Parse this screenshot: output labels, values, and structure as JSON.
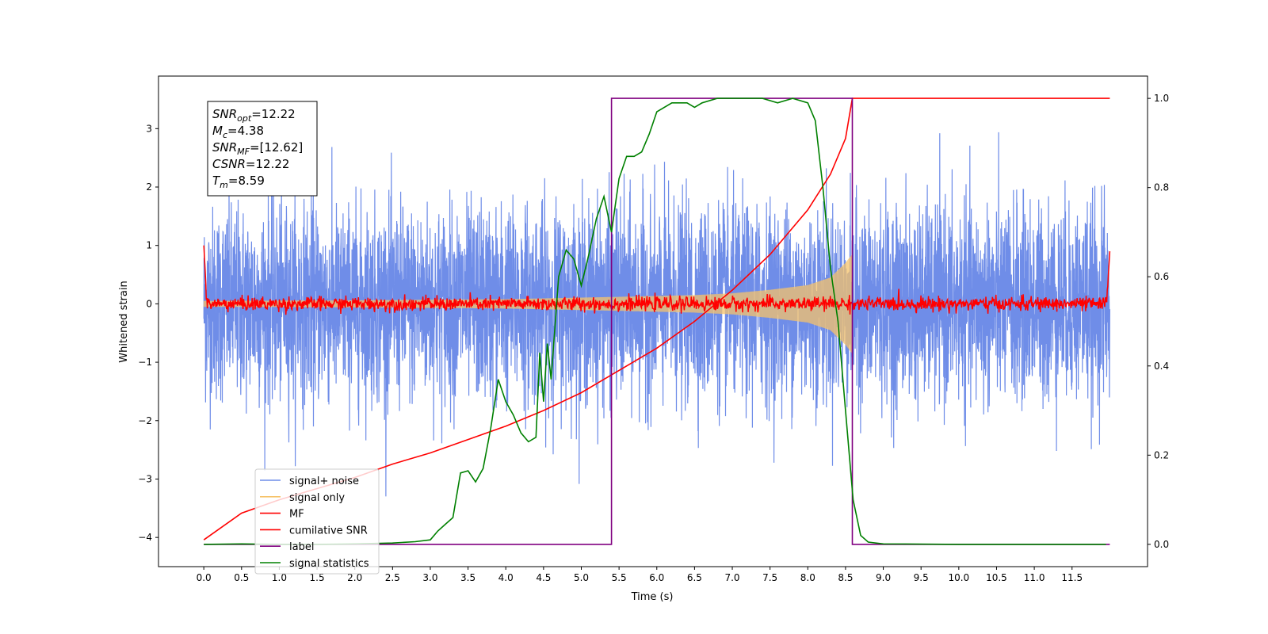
{
  "chart_data": {
    "type": "line",
    "xlabel": "Time (s)",
    "ylabel": "Whitened strain",
    "xlim": [
      -0.6,
      12.5
    ],
    "ylim": [
      -4.5,
      3.9
    ],
    "y2lim": [
      -0.05,
      1.05
    ],
    "x_ticks": [
      0.0,
      0.5,
      1.0,
      1.5,
      2.0,
      2.5,
      3.0,
      3.5,
      4.0,
      4.5,
      5.0,
      5.5,
      6.0,
      6.5,
      7.0,
      7.5,
      8.0,
      8.5,
      9.0,
      9.5,
      10.0,
      10.5,
      11.0,
      11.5
    ],
    "x_tick_labels": [
      "0.0",
      "0.5",
      "1.0",
      "1.5",
      "2.0",
      "2.5",
      "3.0",
      "3.5",
      "4.0",
      "4.5",
      "5.0",
      "5.5",
      "6.0",
      "6.5",
      "7.0",
      "7.5",
      "8.0",
      "8.5",
      "9.0",
      "9.5",
      "10.0",
      "10.5",
      "11.0",
      "11.5"
    ],
    "y_ticks": [
      -4,
      -3,
      -2,
      -1,
      0,
      1,
      2,
      3
    ],
    "y_tick_labels": [
      "−4",
      "−3",
      "−2",
      "−1",
      "0",
      "1",
      "2",
      "3"
    ],
    "y2_ticks": [
      0.0,
      0.2,
      0.4,
      0.6,
      0.8,
      1.0
    ],
    "y2_tick_labels": [
      "0.0",
      "0.2",
      "0.4",
      "0.6",
      "0.8",
      "1.0"
    ],
    "grid": false,
    "legend_position": "bottom-left",
    "series": [
      {
        "name": "signal+ noise",
        "axis": "left",
        "color": "#6f8de8",
        "style": "noise",
        "x_range": [
          0.0,
          12.0
        ],
        "typical_amplitude": [
          -1.6,
          1.9
        ],
        "peak_range": [
          -4.15,
          3.6
        ]
      },
      {
        "name": "signal only",
        "axis": "left",
        "color": "#f6c36b",
        "style": "chirp",
        "x_range": [
          0.0,
          8.59
        ],
        "envelope": [
          [
            0.0,
            0.05
          ],
          [
            2.0,
            0.06
          ],
          [
            4.0,
            0.08
          ],
          [
            5.5,
            0.12
          ],
          [
            6.5,
            0.15
          ],
          [
            7.0,
            0.18
          ],
          [
            7.5,
            0.24
          ],
          [
            8.0,
            0.32
          ],
          [
            8.3,
            0.45
          ],
          [
            8.5,
            0.7
          ],
          [
            8.59,
            0.85
          ]
        ]
      },
      {
        "name": "MF",
        "axis": "left",
        "color": "#ff0000",
        "style": "mf",
        "x_range": [
          0.0,
          12.0
        ],
        "start_value": 1.0,
        "end_value": 0.9,
        "baseline": 0.0,
        "noise_amplitude": 0.1
      },
      {
        "name": "cumilative SNR",
        "axis": "right",
        "color": "#ff0000",
        "style": "line",
        "x": [
          0.0,
          0.5,
          1.0,
          1.5,
          2.0,
          2.5,
          3.0,
          3.5,
          4.0,
          4.5,
          5.0,
          5.5,
          6.0,
          6.5,
          7.0,
          7.5,
          8.0,
          8.3,
          8.5,
          8.59,
          12.0
        ],
        "y": [
          0.01,
          0.07,
          0.1,
          0.125,
          0.15,
          0.18,
          0.205,
          0.235,
          0.265,
          0.3,
          0.34,
          0.39,
          0.44,
          0.5,
          0.57,
          0.65,
          0.75,
          0.83,
          0.91,
          1.0,
          1.0
        ]
      },
      {
        "name": "label",
        "axis": "right",
        "color": "#800080",
        "style": "line",
        "x": [
          0.0,
          5.4,
          5.4,
          8.59,
          8.59,
          12.0
        ],
        "y": [
          0.0,
          0.0,
          1.0,
          1.0,
          0.0,
          0.0
        ]
      },
      {
        "name": "signal statistics",
        "axis": "right",
        "color": "#008000",
        "style": "line",
        "x": [
          0.0,
          0.5,
          1.0,
          1.5,
          2.0,
          2.5,
          2.8,
          3.0,
          3.1,
          3.2,
          3.3,
          3.4,
          3.5,
          3.6,
          3.7,
          3.8,
          3.9,
          4.0,
          4.1,
          4.2,
          4.3,
          4.4,
          4.45,
          4.5,
          4.55,
          4.6,
          4.7,
          4.8,
          4.9,
          5.0,
          5.1,
          5.2,
          5.3,
          5.4,
          5.5,
          5.6,
          5.7,
          5.8,
          5.9,
          6.0,
          6.2,
          6.4,
          6.5,
          6.6,
          6.8,
          7.0,
          7.2,
          7.4,
          7.6,
          7.8,
          8.0,
          8.1,
          8.2,
          8.3,
          8.4,
          8.5,
          8.6,
          8.7,
          8.8,
          9.0,
          10.0,
          11.0,
          11.95
        ],
        "y": [
          0.0,
          0.001,
          0.0,
          0.0,
          0.001,
          0.003,
          0.006,
          0.01,
          0.03,
          0.045,
          0.06,
          0.16,
          0.165,
          0.14,
          0.17,
          0.26,
          0.37,
          0.32,
          0.29,
          0.25,
          0.23,
          0.24,
          0.43,
          0.32,
          0.45,
          0.37,
          0.6,
          0.66,
          0.64,
          0.58,
          0.65,
          0.73,
          0.78,
          0.7,
          0.82,
          0.87,
          0.87,
          0.88,
          0.92,
          0.97,
          0.99,
          0.99,
          0.98,
          0.99,
          1.0,
          1.0,
          1.0,
          1.0,
          0.99,
          1.0,
          0.99,
          0.95,
          0.8,
          0.62,
          0.5,
          0.3,
          0.1,
          0.02,
          0.005,
          0.001,
          0.0,
          0.0,
          0.0
        ]
      }
    ]
  },
  "info_box": {
    "lines": [
      {
        "base": "SNR",
        "sub": "opt",
        "rest": "=12.22"
      },
      {
        "base": "M",
        "sub": "c",
        "rest": "=4.38"
      },
      {
        "base": "SNR",
        "sub": "MF",
        "rest": "=[12.62]"
      },
      {
        "base": "CSNR",
        "sub": "",
        "rest": "=12.22"
      },
      {
        "base": "T",
        "sub": "m",
        "rest": "=8.59"
      }
    ]
  },
  "colors": {
    "axes": "#000000",
    "background": "#ffffff"
  }
}
